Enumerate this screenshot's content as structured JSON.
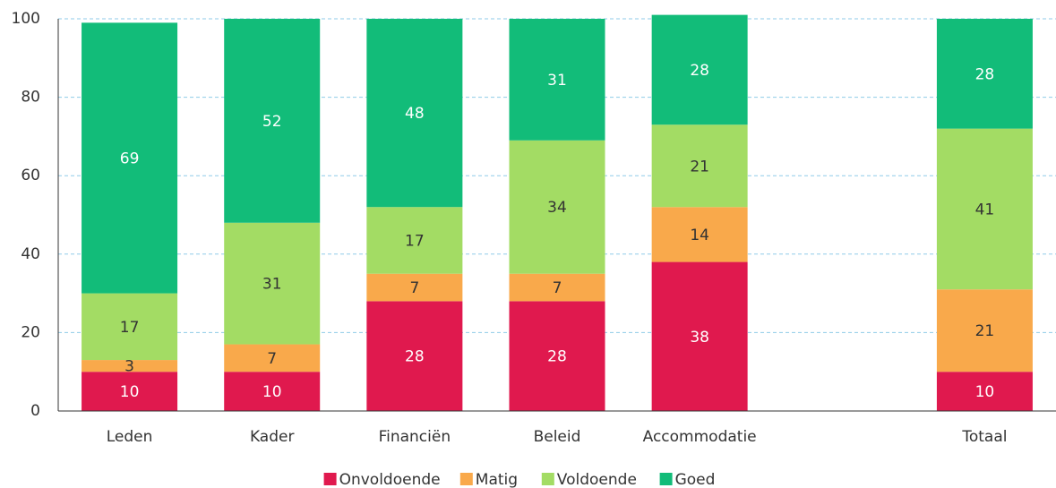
{
  "chart_data": {
    "type": "stacked_bar",
    "categories": [
      "Leden",
      "Kader",
      "Financiën",
      "Beleid",
      "Accommodatie",
      null,
      "Totaal"
    ],
    "series": [
      {
        "name": "Onvoldoende",
        "color": "#e0194e",
        "label_color": "#ffffff",
        "values": [
          10,
          10,
          28,
          28,
          38,
          null,
          10
        ]
      },
      {
        "name": "Matig",
        "color": "#f9a94b",
        "label_color": "#333333",
        "values": [
          3,
          7,
          7,
          7,
          14,
          null,
          21
        ]
      },
      {
        "name": "Voldoende",
        "color": "#a3dc64",
        "label_color": "#333333",
        "values": [
          17,
          31,
          17,
          34,
          21,
          null,
          41
        ]
      },
      {
        "name": "Goed",
        "color": "#12bc79",
        "label_color": "#ffffff",
        "values": [
          69,
          52,
          48,
          31,
          28,
          null,
          28
        ]
      }
    ],
    "ylim": [
      0,
      100
    ],
    "yticks": [
      0,
      20,
      40,
      60,
      80,
      100
    ],
    "grid": true,
    "legend": "bottom"
  }
}
